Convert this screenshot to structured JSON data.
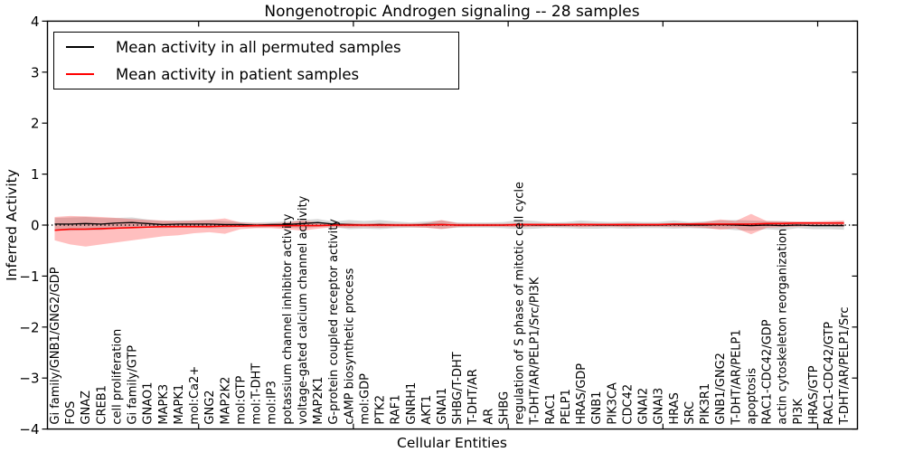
{
  "legend": {
    "items": [
      {
        "label": "Mean activity in all permuted samples",
        "color": "#000000"
      },
      {
        "label": "Mean activity in patient samples",
        "color": "#ff0000"
      }
    ]
  },
  "chart_data": {
    "type": "line",
    "title": "Nongenotropic Androgen signaling -- 28 samples",
    "xlabel": "Cellular Entities",
    "ylabel": "Inferred Activity",
    "ylim": [
      -4,
      4
    ],
    "yticks": [
      -4,
      -3,
      -2,
      -1,
      0,
      1,
      2,
      3,
      4
    ],
    "grid": false,
    "legend_position": "upper left",
    "zero_line": {
      "y": 0,
      "style": "dotted",
      "color": "#000000"
    },
    "categories": [
      "Gi family/GNB1/GNG2/GDP",
      "FOS",
      "GNAZ",
      "CREB1",
      "cell proliferation",
      "Gi family/GTP",
      "GNAO1",
      "MAPK3",
      "MAPK1",
      "mol:Ca2+",
      "GNG2",
      "MAP2K2",
      "mol:GTP",
      "mol:T-DHT",
      "mol:IP3",
      "potassium channel inhibitor activity",
      "voltage-gated calcium channel activity",
      "MAP2K1",
      "G-protein coupled receptor activity",
      "cAMP biosynthetic process",
      "mol:GDP",
      "PTK2",
      "RAF1",
      "GNRH1",
      "AKT1",
      "GNAI1",
      "SHBG/T-DHT",
      "T-DHT/AR",
      "AR",
      "SHBG",
      "regulation of S phase of mitotic cell cycle",
      "T-DHT/AR/PELP1/Src/PI3K",
      "RAC1",
      "PELP1",
      "HRAS/GDP",
      "GNB1",
      "PIK3CA",
      "CDC42",
      "GNAI2",
      "GNAI3",
      "HRAS",
      "SRC",
      "PIK3R1",
      "GNB1/GNG2",
      "T-DHT/AR/PELP1",
      "apoptosis",
      "RAC1-CDC42/GDP",
      "actin cytoskeleton reorganization",
      "PI3K",
      "HRAS/GTP",
      "RAC1-CDC42/GTP",
      "T-DHT/AR/PELP1/Src"
    ],
    "series": [
      {
        "name": "Mean activity in all permuted samples",
        "color": "#000000",
        "band_color": "#000000",
        "band_opacity": 0.15,
        "values": [
          0.02,
          0.02,
          0.03,
          0.02,
          0.04,
          0.05,
          0.03,
          0.01,
          0.02,
          0.02,
          0.02,
          0.01,
          0.01,
          0.0,
          0.01,
          0.01,
          0.03,
          0.05,
          0.02,
          0.01,
          0.0,
          0.01,
          0.0,
          0.0,
          0.01,
          0.01,
          0.0,
          0.0,
          0.0,
          0.0,
          0.01,
          0.0,
          0.0,
          0.0,
          0.01,
          0.0,
          0.0,
          0.0,
          0.0,
          0.0,
          0.01,
          0.0,
          0.0,
          0.01,
          0.0,
          -0.01,
          0.0,
          -0.01,
          0.0,
          -0.01,
          -0.01,
          -0.01
        ],
        "band_upper": [
          0.14,
          0.15,
          0.16,
          0.14,
          0.14,
          0.15,
          0.11,
          0.08,
          0.09,
          0.09,
          0.1,
          0.08,
          0.06,
          0.05,
          0.06,
          0.07,
          0.1,
          0.12,
          0.07,
          0.1,
          0.08,
          0.1,
          0.07,
          0.05,
          0.07,
          0.09,
          0.05,
          0.05,
          0.05,
          0.06,
          0.1,
          0.08,
          0.05,
          0.06,
          0.09,
          0.07,
          0.06,
          0.07,
          0.06,
          0.06,
          0.09,
          0.06,
          0.07,
          0.09,
          0.1,
          0.09,
          0.08,
          0.08,
          0.06,
          0.06,
          0.06,
          0.07
        ],
        "band_lower": [
          -0.1,
          -0.11,
          -0.1,
          -0.1,
          -0.06,
          -0.05,
          -0.05,
          -0.06,
          -0.05,
          -0.05,
          -0.06,
          -0.06,
          -0.04,
          -0.05,
          -0.04,
          -0.05,
          -0.06,
          -0.04,
          -0.04,
          -0.08,
          -0.07,
          -0.08,
          -0.06,
          -0.05,
          -0.05,
          -0.07,
          -0.05,
          -0.05,
          -0.05,
          -0.06,
          -0.08,
          -0.07,
          -0.05,
          -0.06,
          -0.07,
          -0.07,
          -0.06,
          -0.07,
          -0.06,
          -0.06,
          -0.07,
          -0.06,
          -0.07,
          -0.07,
          -0.1,
          -0.11,
          -0.08,
          -0.1,
          -0.06,
          -0.08,
          -0.08,
          -0.09
        ]
      },
      {
        "name": "Mean activity in patient samples",
        "color": "#ff0000",
        "band_color": "#ff0000",
        "band_opacity": 0.25,
        "values": [
          -0.1,
          -0.08,
          -0.08,
          -0.07,
          -0.06,
          -0.05,
          -0.04,
          -0.03,
          -0.03,
          -0.03,
          -0.03,
          -0.02,
          -0.02,
          -0.01,
          -0.01,
          -0.01,
          -0.01,
          -0.01,
          0.0,
          0.0,
          0.0,
          0.0,
          0.0,
          0.0,
          0.0,
          0.01,
          0.0,
          0.0,
          0.0,
          0.0,
          0.01,
          0.01,
          0.01,
          0.01,
          0.01,
          0.01,
          0.01,
          0.01,
          0.01,
          0.01,
          0.02,
          0.02,
          0.02,
          0.02,
          0.02,
          0.02,
          0.03,
          0.03,
          0.04,
          0.04,
          0.04,
          0.04
        ],
        "band_upper": [
          0.16,
          0.18,
          0.17,
          0.16,
          0.14,
          0.12,
          0.1,
          0.09,
          0.08,
          0.09,
          0.1,
          0.13,
          0.05,
          0.03,
          0.03,
          0.05,
          0.09,
          0.05,
          0.03,
          0.04,
          0.03,
          0.04,
          0.03,
          0.03,
          0.04,
          0.1,
          0.04,
          0.03,
          0.03,
          0.03,
          0.04,
          0.03,
          0.03,
          0.03,
          0.04,
          0.03,
          0.03,
          0.04,
          0.03,
          0.03,
          0.04,
          0.04,
          0.06,
          0.11,
          0.08,
          0.22,
          0.08,
          0.07,
          0.07,
          0.07,
          0.08,
          0.09
        ],
        "band_lower": [
          -0.3,
          -0.38,
          -0.42,
          -0.38,
          -0.34,
          -0.3,
          -0.26,
          -0.22,
          -0.2,
          -0.16,
          -0.14,
          -0.17,
          -0.08,
          -0.06,
          -0.06,
          -0.08,
          -0.11,
          -0.07,
          -0.04,
          -0.05,
          -0.04,
          -0.05,
          -0.04,
          -0.04,
          -0.05,
          -0.08,
          -0.04,
          -0.03,
          -0.03,
          -0.03,
          -0.04,
          -0.03,
          -0.03,
          -0.03,
          -0.04,
          -0.03,
          -0.03,
          -0.04,
          -0.03,
          -0.03,
          -0.04,
          -0.04,
          -0.05,
          -0.09,
          -0.06,
          -0.18,
          -0.05,
          -0.04,
          -0.03,
          -0.02,
          -0.02,
          -0.03
        ]
      }
    ]
  }
}
